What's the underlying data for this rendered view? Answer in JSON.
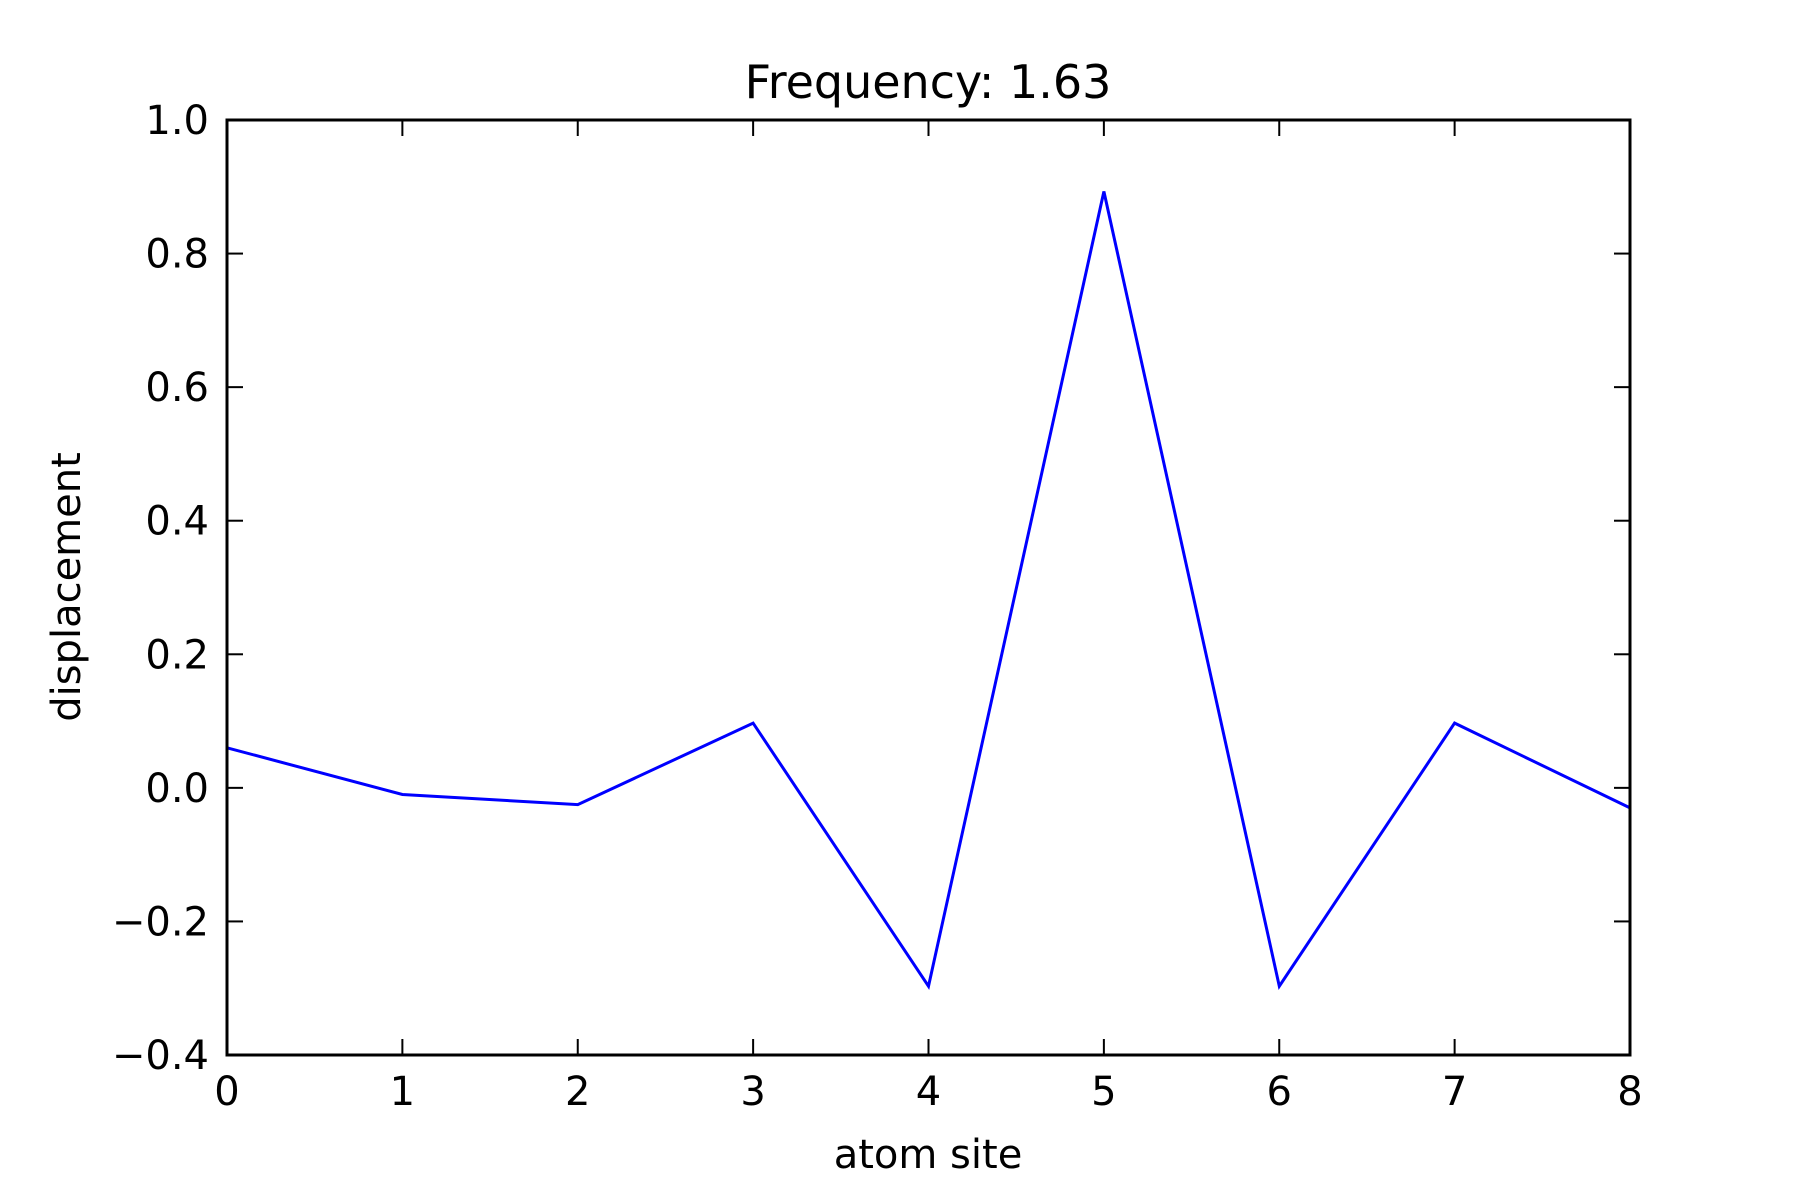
{
  "chart_data": {
    "type": "line",
    "title": "Frequency: 1.63",
    "xlabel": "atom site",
    "ylabel": "displacement",
    "xlim": [
      0,
      8
    ],
    "ylim": [
      -0.4,
      1.0
    ],
    "xticks": [
      0,
      1,
      2,
      3,
      4,
      5,
      6,
      7,
      8
    ],
    "xtick_labels": [
      "0",
      "1",
      "2",
      "3",
      "4",
      "5",
      "6",
      "7",
      "8"
    ],
    "yticks": [
      -0.4,
      -0.2,
      0.0,
      0.2,
      0.4,
      0.6,
      0.8,
      1.0
    ],
    "ytick_labels": [
      "−0.4",
      "−0.2",
      "0.0",
      "0.2",
      "0.4",
      "0.6",
      "0.8",
      "1.0"
    ],
    "grid": false,
    "legend": "none",
    "series": [
      {
        "x": [
          0,
          1,
          2,
          3,
          4,
          5,
          6,
          7,
          8
        ],
        "y": [
          0.06,
          -0.01,
          -0.025,
          0.097,
          -0.297,
          0.893,
          -0.297,
          0.097,
          -0.03
        ],
        "color": "#0000ff"
      }
    ]
  }
}
